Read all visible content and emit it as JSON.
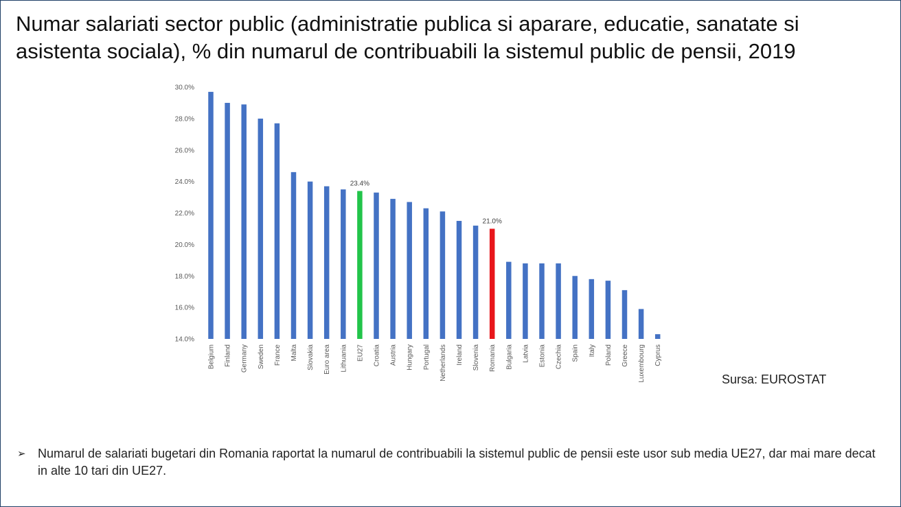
{
  "title": "Numar salariati sector public (administratie publica si aparare, educatie, sanatate si asistenta sociala), % din numarul de contribuabili la sistemul public de pensii, 2019",
  "source": "Sursa: EUROSTAT",
  "note": {
    "bullet": "➢",
    "text": "Numarul de salariati bugetari din Romania raportat la numarul de contribuabili la sistemul public de pensii este usor sub media UE27, dar mai mare decat in alte 10 tari din UE27."
  },
  "colors": {
    "bar": "#4472c4",
    "eu27": "#22c44a",
    "romania": "#e8161b",
    "axis_text": "#595959",
    "label_text": "#404040"
  },
  "chart_data": {
    "type": "bar",
    "title": "",
    "xlabel": "",
    "ylabel": "",
    "ylim": [
      14,
      30
    ],
    "yticks": [
      "14.0%",
      "16.0%",
      "18.0%",
      "20.0%",
      "22.0%",
      "24.0%",
      "26.0%",
      "28.0%",
      "30.0%"
    ],
    "grid": false,
    "categories": [
      "Belgium",
      "Finland",
      "Germany",
      "Sweden",
      "France",
      "Malta",
      "Slovakia",
      "Euro area",
      "Lithuania",
      "EU27",
      "Croatia",
      "Austria",
      "Hungary",
      "Portugal",
      "Netherlands",
      "Ireland",
      "Slovenia",
      "Romania",
      "Bulgaria",
      "Latvia",
      "Estonia",
      "Czechia",
      "Spain",
      "Italy",
      "Poland",
      "Greece",
      "Luxembourg",
      "Cyprus"
    ],
    "values": [
      29.7,
      29.0,
      28.9,
      28.0,
      27.7,
      24.6,
      24.0,
      23.7,
      23.5,
      23.4,
      23.3,
      22.9,
      22.7,
      22.3,
      22.1,
      21.5,
      21.2,
      21.0,
      18.9,
      18.8,
      18.8,
      18.8,
      18.0,
      17.8,
      17.7,
      17.1,
      15.9,
      14.3
    ],
    "highlights": [
      {
        "category": "EU27",
        "color": "#22c44a",
        "label": "23.4%"
      },
      {
        "category": "Romania",
        "color": "#e8161b",
        "label": "21.0%"
      }
    ]
  }
}
